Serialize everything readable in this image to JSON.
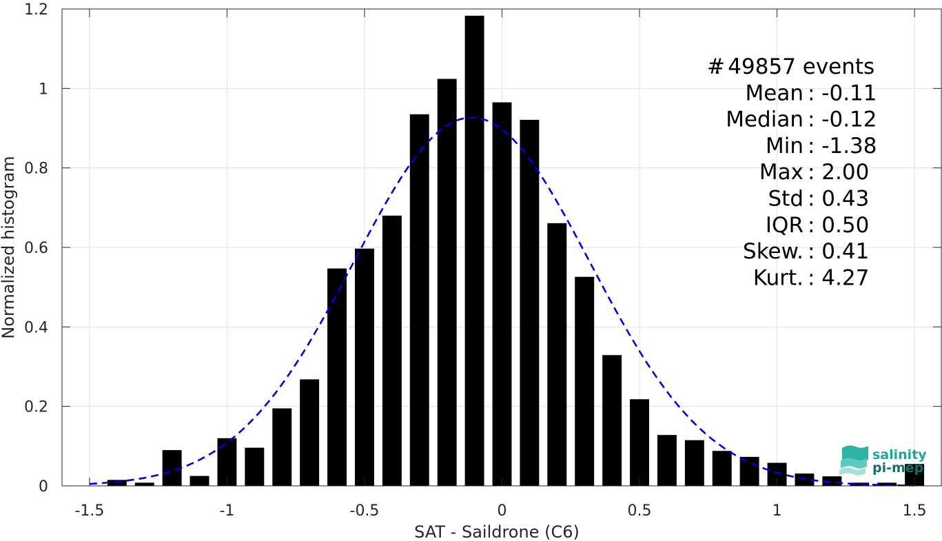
{
  "chart_data": {
    "type": "bar",
    "xlabel": "SAT - Saildrone (C6)",
    "ylabel": "Normalized histogram",
    "xlim": [
      -1.6,
      1.6
    ],
    "ylim": [
      0,
      1.2
    ],
    "xticks": [
      -1.5,
      -1,
      -0.5,
      0,
      0.5,
      1,
      1.5
    ],
    "xtick_labels": [
      "-1.5",
      "-1",
      "-0.5",
      "0",
      "0.5",
      "1",
      "1.5"
    ],
    "yticks": [
      0,
      0.2,
      0.4,
      0.6,
      0.8,
      1.0,
      1.2
    ],
    "ytick_labels": [
      "0",
      "0.2",
      "0.4",
      "0.6",
      "0.8",
      "1",
      "1.2"
    ],
    "grid": true,
    "bar_color": "#000000",
    "bin_width": 0.1,
    "bars": {
      "x": [
        -1.4,
        -1.3,
        -1.2,
        -1.1,
        -1.0,
        -0.9,
        -0.8,
        -0.7,
        -0.6,
        -0.5,
        -0.4,
        -0.3,
        -0.2,
        -0.1,
        0.0,
        0.1,
        0.2,
        0.3,
        0.4,
        0.5,
        0.6,
        0.7,
        0.8,
        0.9,
        1.0,
        1.1,
        1.2,
        1.3,
        1.4,
        1.5
      ],
      "values": [
        0.015,
        0.008,
        0.09,
        0.025,
        0.12,
        0.096,
        0.195,
        0.268,
        0.547,
        0.597,
        0.68,
        0.935,
        1.024,
        1.183,
        0.965,
        0.921,
        0.661,
        0.526,
        0.329,
        0.218,
        0.128,
        0.115,
        0.088,
        0.073,
        0.058,
        0.031,
        0.024,
        0.008,
        0.008,
        0.055
      ]
    },
    "fit_curve": {
      "type": "gaussian",
      "style": "dashed",
      "color": "#0000dd",
      "mean": -0.11,
      "std": 0.43,
      "x_range": [
        -1.5,
        1.5
      ]
    }
  },
  "stats": [
    {
      "label": "#  ",
      "value": ": 49857 events"
    },
    {
      "label": "Mean",
      "value": ": -0.11"
    },
    {
      "label": "Median",
      "value": ": -0.12"
    },
    {
      "label": "Min",
      "value": ": -1.38"
    },
    {
      "label": "Max",
      "value": ": 2.00"
    },
    {
      "label": "Std",
      "value": ": 0.43"
    },
    {
      "label": "IQR",
      "value": ": 0.50"
    },
    {
      "label": "Skew.",
      "value": ": 0.41"
    },
    {
      "label": "Kurt.",
      "value": ": 4.27"
    }
  ],
  "logo": {
    "line1": "salinity",
    "line2": "pi-mep",
    "color": "#1aa89a"
  }
}
